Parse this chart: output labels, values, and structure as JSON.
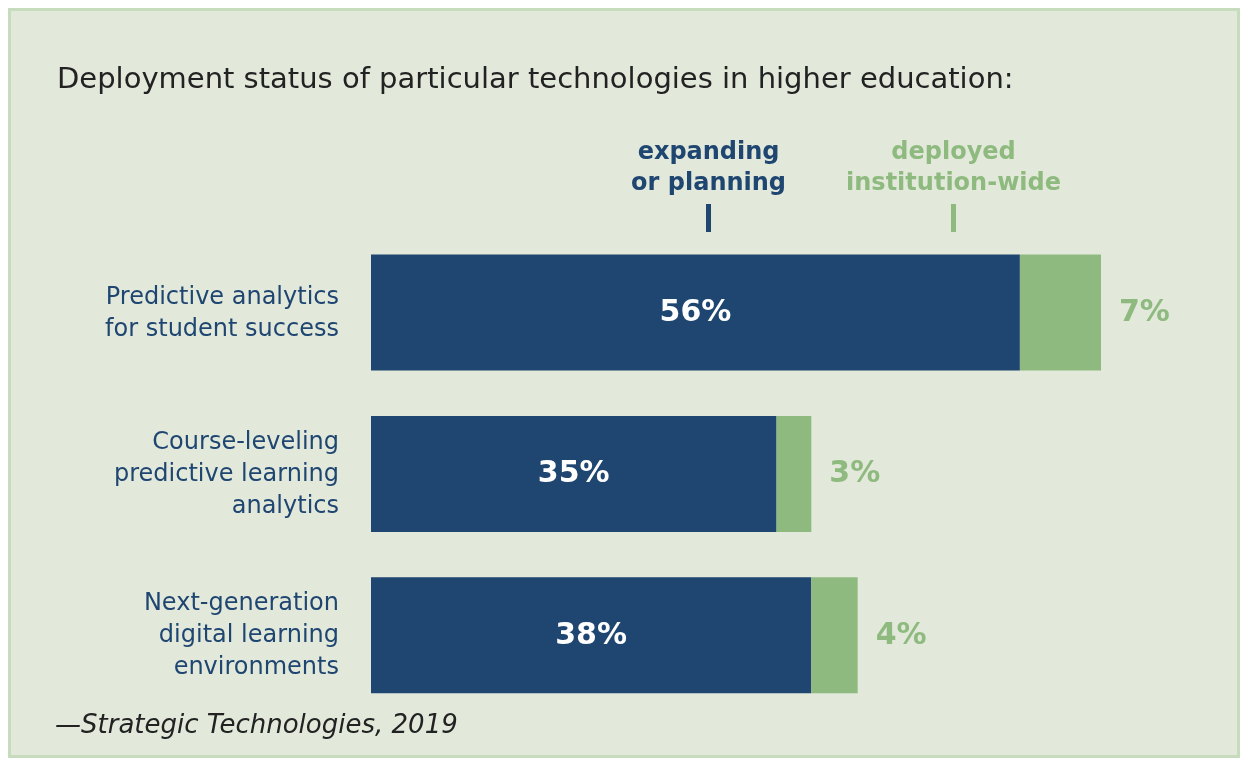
{
  "chart_data": {
    "type": "bar",
    "orientation": "horizontal",
    "stacked": true,
    "title": "Deployment status of particular technologies in higher education:",
    "categories": [
      "Predictive analytics\nfor student success",
      "Course-leveling\npredictive learning\nanalytics",
      "Next-generation\ndigital learning\nenvironments"
    ],
    "series": [
      {
        "name": "expanding\nor planning",
        "color": "#1f4571",
        "values": [
          56,
          35,
          38
        ],
        "value_labels": [
          "56%",
          "35%",
          "38%"
        ]
      },
      {
        "name": "deployed\ninstitution-wide",
        "color": "#8fba7f",
        "values": [
          7,
          3,
          4
        ],
        "value_labels": [
          "7%",
          "3%",
          "4%"
        ]
      }
    ],
    "legend": "top",
    "annotations": [
      "—Strategic Technologies, 2019"
    ]
  }
}
